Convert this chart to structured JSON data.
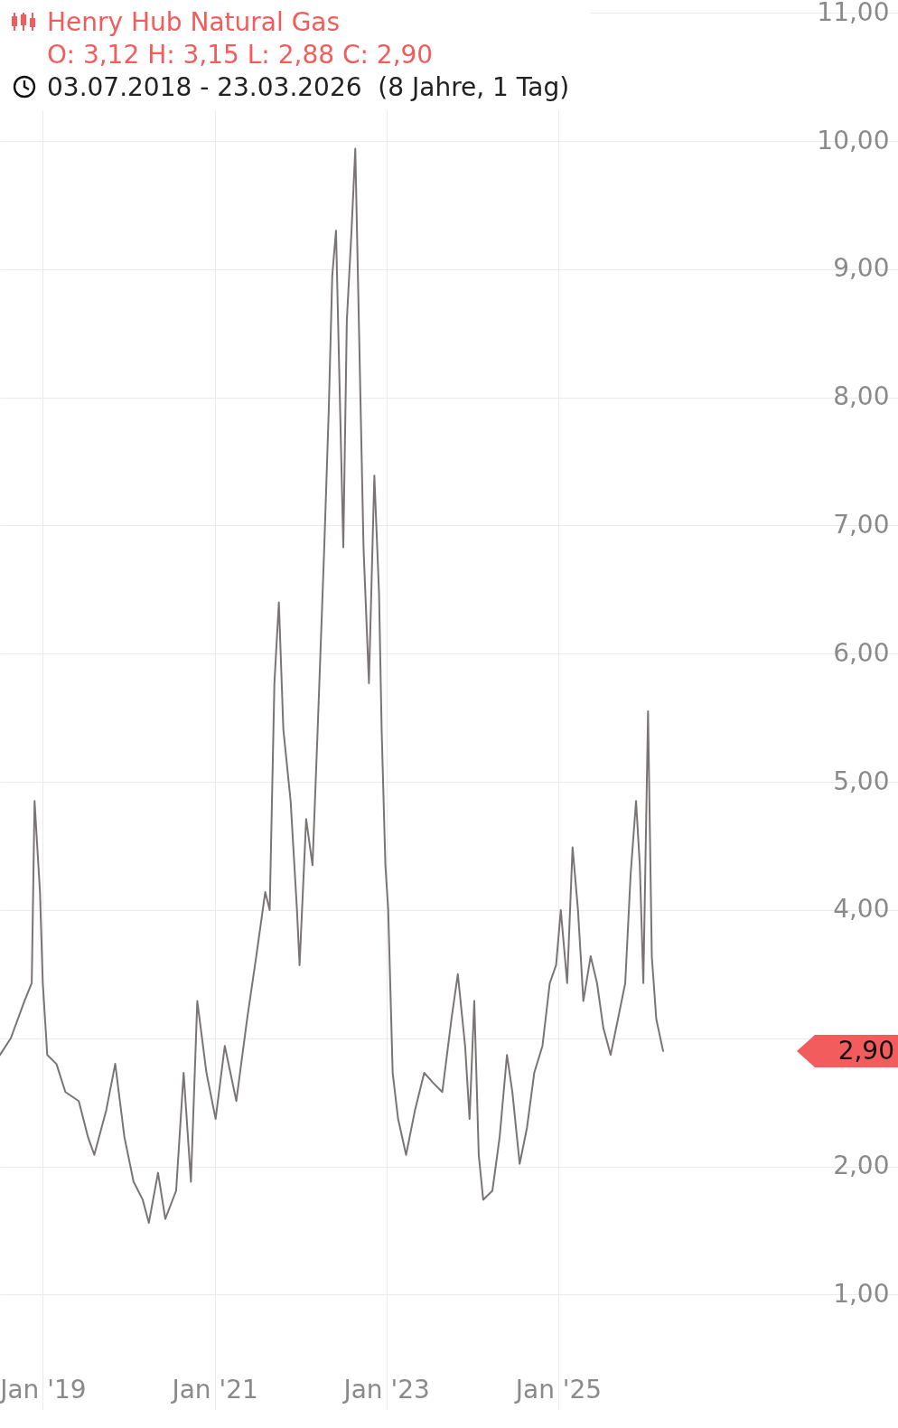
{
  "chart_data": {
    "type": "line",
    "title": "Henry Hub Natural Gas",
    "subtitle": "O: 3,12 H: 3,15 L: 2,88 C: 2,90",
    "annotations": [
      "03.07.2018 - 23.03.2026  (8 Jahre, 1 Tag)",
      "2,90"
    ],
    "x": [
      "2018-07-03",
      "2018-08-18",
      "2018-10-15",
      "2018-11-15",
      "2018-11-27",
      "2018-12-20",
      "2019-01-01",
      "2019-01-20",
      "2019-02-28",
      "2019-04-07",
      "2019-06-03",
      "2019-07-12",
      "2019-08-08",
      "2019-09-28",
      "2019-11-05",
      "2019-12-14",
      "2020-01-22",
      "2020-03-01",
      "2020-03-27",
      "2020-05-05",
      "2020-06-05",
      "2020-07-21",
      "2020-08-22",
      "2020-09-22",
      "2020-10-19",
      "2020-11-27",
      "2021-01-05",
      "2021-02-13",
      "2021-04-03",
      "2021-05-19",
      "2021-06-27",
      "2021-08-04",
      "2021-08-23",
      "2021-09-12",
      "2021-10-01",
      "2021-10-20",
      "2021-11-20",
      "2021-12-17",
      "2021-12-28",
      "2022-01-25",
      "2022-02-21",
      "2022-03-15",
      "2022-04-12",
      "2022-05-01",
      "2022-05-16",
      "2022-06-01",
      "2022-06-16",
      "2022-07-02",
      "2022-07-17",
      "2022-08-06",
      "2022-08-22",
      "2022-09-06",
      "2022-09-26",
      "2022-10-19",
      "2022-11-11",
      "2022-12-01",
      "2022-12-12",
      "2022-12-28",
      "2023-01-09",
      "2023-01-28",
      "2023-02-20",
      "2023-03-26",
      "2023-05-03",
      "2023-06-11",
      "2023-07-20",
      "2023-08-27",
      "2023-10-05",
      "2023-11-01",
      "2023-12-02",
      "2023-12-21",
      "2024-01-10",
      "2024-01-29",
      "2024-02-17",
      "2024-03-27",
      "2024-04-27",
      "2024-05-28",
      "2024-06-20",
      "2024-07-21",
      "2024-08-21",
      "2024-09-21",
      "2024-10-26",
      "2024-11-26",
      "2024-12-23",
      "2025-01-12",
      "2025-02-08",
      "2025-03-03",
      "2025-03-26",
      "2025-04-18",
      "2025-05-19",
      "2025-06-15",
      "2025-07-12",
      "2025-08-12",
      "2025-09-12",
      "2025-10-13",
      "2025-11-05",
      "2025-11-28",
      "2025-12-14",
      "2025-12-29",
      "2026-01-18",
      "2026-02-03",
      "2026-02-22",
      "2026-03-23"
    ],
    "series": [
      {
        "color": "#7a7574",
        "values": [
          2.87,
          3.0,
          3.29,
          3.43,
          4.85,
          4.14,
          3.43,
          2.87,
          2.8,
          2.58,
          2.51,
          2.23,
          2.09,
          2.44,
          2.8,
          2.23,
          1.88,
          1.74,
          1.56,
          1.95,
          1.59,
          1.81,
          2.73,
          1.88,
          3.29,
          2.73,
          2.37,
          2.94,
          2.51,
          3.15,
          3.64,
          4.14,
          4.0,
          5.77,
          6.4,
          5.41,
          4.85,
          4.0,
          3.57,
          4.71,
          4.35,
          5.41,
          6.83,
          7.89,
          8.95,
          9.3,
          8.1,
          6.83,
          8.6,
          9.3,
          9.94,
          8.6,
          6.83,
          5.77,
          7.39,
          6.47,
          5.41,
          4.35,
          4.0,
          2.73,
          2.37,
          2.09,
          2.44,
          2.73,
          2.65,
          2.58,
          3.15,
          3.5,
          2.94,
          2.37,
          3.29,
          2.09,
          1.74,
          1.81,
          2.23,
          2.87,
          2.58,
          2.02,
          2.3,
          2.73,
          2.94,
          3.43,
          3.57,
          4.0,
          3.43,
          4.49,
          4.0,
          3.29,
          3.64,
          3.43,
          3.08,
          2.87,
          3.15,
          3.43,
          4.28,
          4.85,
          4.35,
          3.43,
          5.55,
          3.64,
          3.15,
          2.9
        ]
      }
    ],
    "xlim": [
      "2018-07-03",
      "2028-12-16"
    ],
    "ylim": [
      0.1,
      11.1
    ],
    "xticks": [
      {
        "value": "2019-01-01",
        "label": "Jan '19"
      },
      {
        "value": "2021-01-01",
        "label": "Jan '21"
      },
      {
        "value": "2023-01-01",
        "label": "Jan '23"
      },
      {
        "value": "2025-01-01",
        "label": "Jan '25"
      }
    ],
    "yticks": [
      {
        "value": 1,
        "label": "1,00"
      },
      {
        "value": 2,
        "label": "2,00"
      },
      {
        "value": 3,
        "label": null
      },
      {
        "value": 4,
        "label": "4,00"
      },
      {
        "value": 5,
        "label": "5,00"
      },
      {
        "value": 6,
        "label": "6,00"
      },
      {
        "value": 7,
        "label": "7,00"
      },
      {
        "value": 8,
        "label": "8,00"
      },
      {
        "value": 9,
        "label": "9,00"
      },
      {
        "value": 10,
        "label": "10,00"
      },
      {
        "value": 11,
        "label": "11,00"
      }
    ],
    "grid": true,
    "marker": "none",
    "line_style": "solid"
  }
}
